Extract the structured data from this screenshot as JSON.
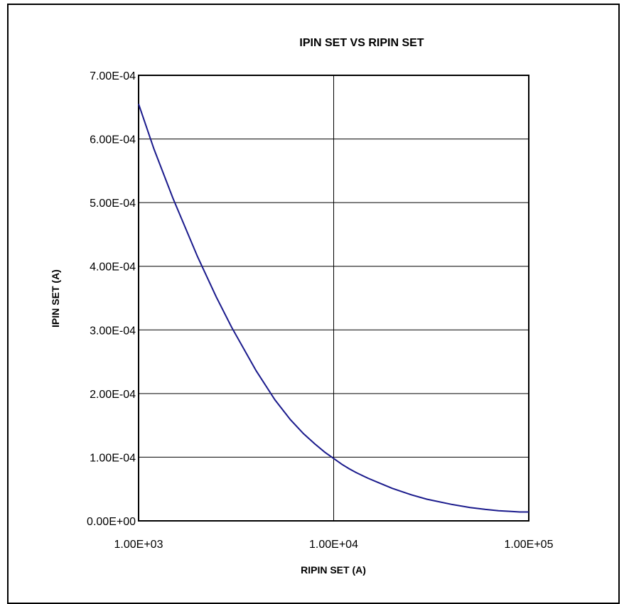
{
  "chart_data": {
    "type": "line",
    "title": "IPIN SET VS RIPIN SET",
    "xlabel": "RIPIN SET (A)",
    "ylabel": "IPIN SET (A)",
    "xscale": "log",
    "xlim": [
      1000,
      100000
    ],
    "ylim": [
      0,
      0.0007
    ],
    "grid": true,
    "x_ticks": [
      1000,
      10000,
      100000
    ],
    "x_tick_labels": [
      "1.00E+03",
      "1.00E+04",
      "1.00E+05"
    ],
    "y_ticks": [
      0,
      0.0001,
      0.0002,
      0.0003,
      0.0004,
      0.0005,
      0.0006,
      0.0007
    ],
    "y_tick_labels": [
      "0.00E+00",
      "1.00E-04",
      "2.00E-04",
      "3.00E-04",
      "4.00E-04",
      "5.00E-04",
      "6.00E-04",
      "7.00E-04"
    ],
    "series": [
      {
        "color": "#1a1a8c",
        "x": [
          1000,
          1200,
          1500,
          2000,
          2500,
          3000,
          4000,
          5000,
          6000,
          7000,
          8000,
          9000,
          10000,
          11000,
          12000,
          13000,
          15000,
          17000,
          20000,
          25000,
          30000,
          40000,
          50000,
          60000,
          70000,
          80000,
          90000,
          100000
        ],
        "y": [
          0.000655,
          0.000584,
          0.000507,
          0.000416,
          0.000352,
          0.000304,
          0.000236,
          0.00019,
          0.000159,
          0.000137,
          0.000121,
          0.000108,
          9.8e-05,
          8.9e-05,
          8.2e-05,
          7.6e-05,
          6.7e-05,
          6e-05,
          5.1e-05,
          4.1e-05,
          3.4e-05,
          2.6e-05,
          2.1e-05,
          1.8e-05,
          1.6e-05,
          1.5e-05,
          1.4e-05,
          1.4e-05
        ]
      }
    ]
  }
}
